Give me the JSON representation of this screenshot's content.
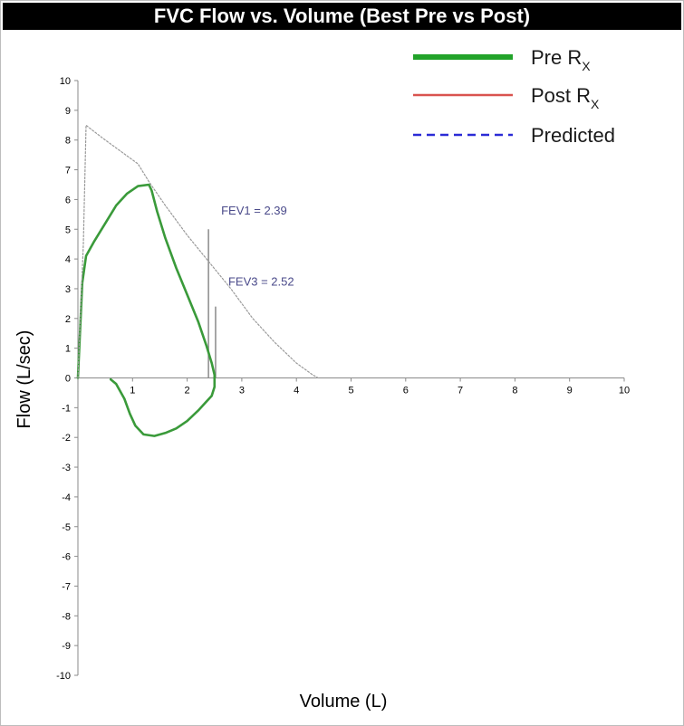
{
  "chart_data": {
    "type": "line",
    "title": "FVC Flow vs. Volume (Best Pre vs Post)",
    "xlabel": "Volume (L)",
    "ylabel": "Flow  (L/sec)",
    "xlim": [
      0,
      10
    ],
    "ylim": [
      -10,
      10
    ],
    "x_ticks": [
      "1",
      "2",
      "3",
      "4",
      "5",
      "6",
      "7",
      "8",
      "9",
      "10"
    ],
    "y_ticks": [
      "10",
      "9",
      "8",
      "7",
      "6",
      "5",
      "4",
      "3",
      "2",
      "1",
      "0",
      "-1",
      "-2",
      "-3",
      "-4",
      "-5",
      "-6",
      "-7",
      "-8",
      "-9",
      "-10"
    ],
    "grid": false,
    "legend_position": "top-right",
    "legend": [
      {
        "name": "Pre",
        "sub": "X",
        "prefix": "R",
        "color": "#22a32a",
        "style": "solid-thick"
      },
      {
        "name": "Post",
        "sub": "X",
        "prefix": "R",
        "color": "#d9534f",
        "style": "solid"
      },
      {
        "name": "Predicted",
        "sub": "",
        "prefix": "",
        "color": "#2b2bd6",
        "style": "dashed"
      }
    ],
    "series": [
      {
        "name": "Pre",
        "color": "#3a9a3a",
        "points": [
          [
            0,
            0
          ],
          [
            0.03,
            1.2
          ],
          [
            0.08,
            3.2
          ],
          [
            0.15,
            4.1
          ],
          [
            0.3,
            4.6
          ],
          [
            0.5,
            5.2
          ],
          [
            0.7,
            5.8
          ],
          [
            0.9,
            6.2
          ],
          [
            1.1,
            6.45
          ],
          [
            1.3,
            6.5
          ],
          [
            1.35,
            6.3
          ],
          [
            1.45,
            5.6
          ],
          [
            1.6,
            4.7
          ],
          [
            1.8,
            3.7
          ],
          [
            2.0,
            2.8
          ],
          [
            2.2,
            1.9
          ],
          [
            2.35,
            1.1
          ],
          [
            2.45,
            0.5
          ],
          [
            2.5,
            0.1
          ],
          [
            2.5,
            -0.3
          ],
          [
            2.45,
            -0.6
          ],
          [
            2.35,
            -0.8
          ],
          [
            2.2,
            -1.1
          ],
          [
            2.0,
            -1.45
          ],
          [
            1.8,
            -1.7
          ],
          [
            1.6,
            -1.85
          ],
          [
            1.4,
            -1.95
          ],
          [
            1.2,
            -1.9
          ],
          [
            1.05,
            -1.6
          ],
          [
            0.95,
            -1.2
          ],
          [
            0.85,
            -0.7
          ],
          [
            0.7,
            -0.2
          ],
          [
            0.6,
            -0.05
          ]
        ]
      },
      {
        "name": "Predicted",
        "color": "#9a9a9a",
        "points": [
          [
            0,
            0
          ],
          [
            0.1,
            4.5
          ],
          [
            0.15,
            8.5
          ],
          [
            0.25,
            8.35
          ],
          [
            0.5,
            8.0
          ],
          [
            0.8,
            7.6
          ],
          [
            1.1,
            7.2
          ],
          [
            1.3,
            6.6
          ],
          [
            1.6,
            5.8
          ],
          [
            2.0,
            4.8
          ],
          [
            2.4,
            3.9
          ],
          [
            2.8,
            3.0
          ],
          [
            3.2,
            2.0
          ],
          [
            3.6,
            1.2
          ],
          [
            4.0,
            0.5
          ],
          [
            4.3,
            0.1
          ],
          [
            4.4,
            0
          ]
        ]
      }
    ],
    "annotations": [
      {
        "label": "FEV1 = 2.39",
        "x": 2.39,
        "y_top": 5.0
      },
      {
        "label": "FEV3 = 2.52",
        "x": 2.52,
        "y_top": 2.4
      }
    ]
  }
}
